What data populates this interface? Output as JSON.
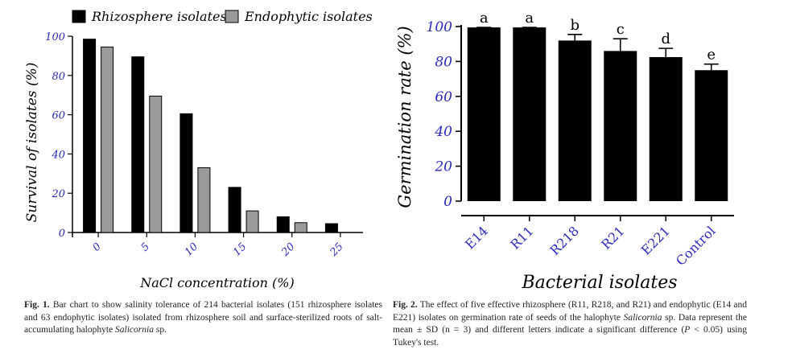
{
  "chart_data": [
    {
      "type": "bar",
      "title": "",
      "xlabel": "NaCl concentration (%)",
      "ylabel": "Survival of isolates (%)",
      "categories": [
        "0",
        "5",
        "10",
        "15",
        "20",
        "25"
      ],
      "series": [
        {
          "name": "Rhizosphere isolates",
          "values": [
            98.5,
            89.5,
            60.5,
            23.0,
            8.0,
            4.5
          ],
          "color": "#000000"
        },
        {
          "name": "Endophytic isolates",
          "values": [
            94.5,
            69.5,
            33.0,
            11.0,
            5.0,
            0
          ],
          "color": "#9a9a9a"
        }
      ],
      "ylim": [
        0,
        100
      ],
      "yticks": [
        "0",
        "20",
        "40",
        "60",
        "80",
        "100"
      ],
      "legend_position": "top",
      "grid": false
    },
    {
      "type": "bar",
      "title": "",
      "xlabel": "Bacterial isolates",
      "ylabel": "Germination rate (%)",
      "categories": [
        "E14",
        "R11",
        "R218",
        "R21",
        "E221",
        "Control"
      ],
      "values": [
        99.5,
        99.5,
        92,
        86,
        82.5,
        75
      ],
      "errors": [
        0,
        0,
        3.5,
        7,
        5,
        3.5
      ],
      "significance_letters": [
        "a",
        "a",
        "b",
        "c",
        "d",
        "e"
      ],
      "ylim": [
        0,
        100
      ],
      "yticks": [
        "0",
        "20",
        "40",
        "60",
        "80",
        "100"
      ],
      "color": "#000000",
      "grid": false
    }
  ],
  "captions": {
    "fig1_label": "Fig. 1.",
    "fig1_text_a": " Bar chart to show salinity tolerance of 214 bacterial isolates (151 rhizosphere isolates and 63 endophytic isolates) isolated from rhizosphere soil and surface-sterilized roots of salt-accumulating halophyte ",
    "fig1_italic": "Salicornia",
    "fig1_text_b": " sp.",
    "fig2_label": "Fig. 2.",
    "fig2_text_a": " The effect of five effective rhizosphere (R11, R218, and R21) and endophytic (E14 and E221) isolates on germination rate of seeds of the halophyte ",
    "fig2_italic": "Salicornia",
    "fig2_text_b": " sp. Data represent the mean ± SD (n = 3) and different letters indicate a significant difference (",
    "fig2_p": "P",
    "fig2_text_c": " < 0.05) using Tukey's test."
  }
}
